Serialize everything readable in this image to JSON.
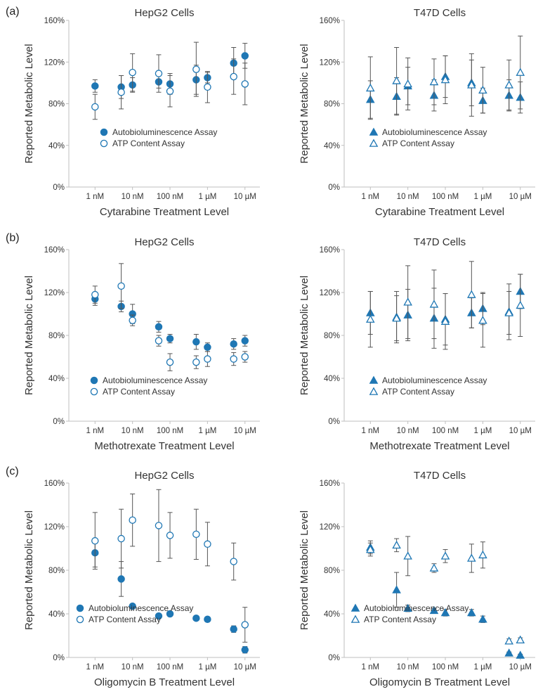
{
  "panel_labels": [
    "(a)",
    "(b)",
    "(c)"
  ],
  "colors": {
    "marker": "#1f77b4",
    "axis": "#bfbfbf",
    "errorbar": "#555555",
    "text": "#333333"
  },
  "chart_data": [
    {
      "type": "scatter",
      "panel": "(a)",
      "title": "HepG2 Cells",
      "xlabel": "Cytarabine Treatment Level",
      "ylabel": "Reported Metabolic Level",
      "ylim": [
        0,
        160
      ],
      "yticks": [
        "0%",
        "40%",
        "80%",
        "120%",
        "160%"
      ],
      "x_tick_labels": [
        "1 nM",
        "10 nM",
        "100 nM",
        "1 µM",
        "10 µM"
      ],
      "x_tick_values": [
        1,
        10,
        100,
        1000,
        10000
      ],
      "x_scale": "log",
      "legend_position": "lower-left",
      "series": [
        {
          "name": "Autobioluminescence Assay",
          "marker": "filled-circle",
          "x": [
            1,
            5,
            10,
            50,
            100,
            500,
            1000,
            5000,
            10000
          ],
          "y": [
            97,
            96,
            98,
            101,
            99,
            103,
            105,
            119,
            126
          ],
          "err": [
            6,
            11,
            7,
            6,
            10,
            14,
            5,
            15,
            12
          ]
        },
        {
          "name": "ATP Content Assay",
          "marker": "open-circle",
          "x": [
            1,
            5,
            10,
            50,
            100,
            500,
            1000,
            5000,
            10000
          ],
          "y": [
            77,
            91,
            110,
            109,
            92,
            113,
            96,
            106,
            99
          ],
          "err": [
            12,
            16,
            18,
            18,
            15,
            26,
            15,
            17,
            20
          ]
        }
      ]
    },
    {
      "type": "scatter",
      "panel": "(a)",
      "title": "T47D Cells",
      "xlabel": "Cytarabine Treatment Level",
      "ylabel": "Reported Metabolic Level",
      "ylim": [
        0,
        160
      ],
      "yticks": [
        "0%",
        "40%",
        "80%",
        "120%",
        "160%"
      ],
      "x_tick_labels": [
        "1 nM",
        "10 nM",
        "100 nM",
        "1 µM",
        "10 µM"
      ],
      "x_tick_values": [
        1,
        10,
        100,
        1000,
        10000
      ],
      "x_scale": "log",
      "legend_position": "lower-left",
      "series": [
        {
          "name": "Autobioluminescence Assay",
          "marker": "filled-triangle",
          "x": [
            1,
            5,
            10,
            50,
            100,
            500,
            1000,
            5000,
            10000
          ],
          "y": [
            84,
            87,
            97,
            88,
            106,
            100,
            83,
            88,
            86
          ],
          "err": [
            18,
            18,
            18,
            15,
            20,
            22,
            12,
            15,
            15
          ]
        },
        {
          "name": "ATP Content Assay",
          "marker": "open-triangle",
          "x": [
            1,
            5,
            10,
            50,
            100,
            500,
            1000,
            5000,
            10000
          ],
          "y": [
            95,
            102,
            99,
            101,
            103,
            98,
            93,
            98,
            110
          ],
          "err": [
            30,
            32,
            25,
            22,
            23,
            30,
            22,
            24,
            35
          ]
        }
      ]
    },
    {
      "type": "scatter",
      "panel": "(b)",
      "title": "HepG2 Cells",
      "xlabel": "Methotrexate Treatment Level",
      "ylabel": "Reported Metabolic Level",
      "ylim": [
        0,
        160
      ],
      "yticks": [
        "0%",
        "40%",
        "80%",
        "120%",
        "160%"
      ],
      "x_tick_labels": [
        "1 nM",
        "10 nM",
        "100 nM",
        "1 µM",
        "10 µM"
      ],
      "x_tick_values": [
        1,
        10,
        100,
        1000,
        10000
      ],
      "x_scale": "log",
      "legend_position": "lower-left",
      "series": [
        {
          "name": "Autobioluminescence Assay",
          "marker": "filled-circle",
          "x": [
            1,
            5,
            10,
            50,
            100,
            500,
            1000,
            5000,
            10000
          ],
          "y": [
            114,
            107,
            100,
            88,
            77,
            74,
            69,
            72,
            75
          ],
          "err": [
            6,
            5,
            9,
            5,
            4,
            7,
            4,
            5,
            5
          ]
        },
        {
          "name": "ATP Content Assay",
          "marker": "open-circle",
          "x": [
            1,
            5,
            10,
            50,
            100,
            500,
            1000,
            5000,
            10000
          ],
          "y": [
            118,
            126,
            94,
            75,
            55,
            55,
            58,
            58,
            60
          ],
          "err": [
            8,
            21,
            5,
            5,
            8,
            6,
            7,
            6,
            5
          ]
        }
      ]
    },
    {
      "type": "scatter",
      "panel": "(b)",
      "title": "T47D Cells",
      "xlabel": "Methotrexate Treatment Level",
      "ylabel": "Reported Metabolic Level",
      "ylim": [
        0,
        160
      ],
      "yticks": [
        "0%",
        "40%",
        "80%",
        "120%",
        "160%"
      ],
      "x_tick_labels": [
        "1 nM",
        "10 nM",
        "100 nM",
        "1 µM",
        "10 µM"
      ],
      "x_tick_values": [
        1,
        10,
        100,
        1000,
        10000
      ],
      "x_scale": "log",
      "legend_position": "lower-left",
      "series": [
        {
          "name": "Autobioluminescence Assay",
          "marker": "filled-triangle",
          "x": [
            1,
            5,
            10,
            50,
            100,
            500,
            1000,
            5000,
            10000
          ],
          "y": [
            101,
            97,
            99,
            96,
            95,
            101,
            105,
            102,
            121
          ],
          "err": [
            20,
            24,
            24,
            28,
            24,
            14,
            15,
            26,
            16
          ]
        },
        {
          "name": "ATP Content Assay",
          "marker": "open-triangle",
          "x": [
            1,
            5,
            10,
            50,
            100,
            500,
            1000,
            5000,
            10000
          ],
          "y": [
            95,
            96,
            111,
            109,
            93,
            118,
            94,
            101,
            108
          ],
          "err": [
            26,
            21,
            34,
            32,
            26,
            31,
            25,
            20,
            29
          ]
        }
      ]
    },
    {
      "type": "scatter",
      "panel": "(c)",
      "title": "HepG2 Cells",
      "xlabel": "Oligomycin B Treatment Level",
      "ylabel": "Reported Metabolic Level",
      "ylim": [
        0,
        160
      ],
      "yticks": [
        "0%",
        "40%",
        "80%",
        "120%",
        "160%"
      ],
      "x_tick_labels": [
        "1 nM",
        "10 nM",
        "100 nM",
        "1 µM",
        "10 µM"
      ],
      "x_tick_values": [
        1,
        10,
        100,
        1000,
        10000
      ],
      "x_scale": "log",
      "legend_position": "lower-left",
      "series": [
        {
          "name": "Autobioluminescence Assay",
          "marker": "filled-circle",
          "x": [
            1,
            5,
            10,
            50,
            100,
            500,
            1000,
            5000,
            10000
          ],
          "y": [
            96,
            72,
            47,
            38,
            40,
            36,
            35,
            26,
            7
          ],
          "err": [
            13,
            16,
            2,
            2,
            2,
            2,
            2,
            3,
            3
          ]
        },
        {
          "name": "ATP Content Assay",
          "marker": "open-circle",
          "x": [
            1,
            5,
            10,
            50,
            100,
            500,
            1000,
            5000,
            10000
          ],
          "y": [
            107,
            109,
            126,
            121,
            112,
            113,
            104,
            88,
            30
          ],
          "err": [
            26,
            27,
            24,
            33,
            21,
            23,
            20,
            17,
            16
          ]
        }
      ]
    },
    {
      "type": "scatter",
      "panel": "(c)",
      "title": "T47D Cells",
      "xlabel": "Oligomycin B Treatment Level",
      "ylabel": "Reported Metabolic Level",
      "ylim": [
        0,
        160
      ],
      "yticks": [
        "0%",
        "40%",
        "80%",
        "120%",
        "160%"
      ],
      "x_tick_labels": [
        "1 nM",
        "10 nM",
        "100 nM",
        "1 µM",
        "10 µM"
      ],
      "x_tick_values": [
        1,
        10,
        100,
        1000,
        10000
      ],
      "x_scale": "log",
      "legend_position": "lower-left",
      "series": [
        {
          "name": "Autobioluminescence Assay",
          "marker": "filled-triangle",
          "x": [
            1,
            5,
            10,
            50,
            100,
            500,
            1000,
            5000,
            10000
          ],
          "y": [
            101,
            62,
            45,
            43,
            41,
            41,
            35,
            4,
            2
          ],
          "err": [
            6,
            16,
            3,
            2,
            3,
            3,
            3,
            1,
            1
          ]
        },
        {
          "name": "ATP Content Assay",
          "marker": "open-triangle",
          "x": [
            1,
            5,
            10,
            50,
            100,
            500,
            1000,
            5000,
            10000
          ],
          "y": [
            99,
            103,
            93,
            82,
            93,
            91,
            94,
            15,
            16
          ],
          "err": [
            6,
            6,
            18,
            4,
            6,
            13,
            12,
            2,
            2
          ]
        }
      ]
    }
  ]
}
